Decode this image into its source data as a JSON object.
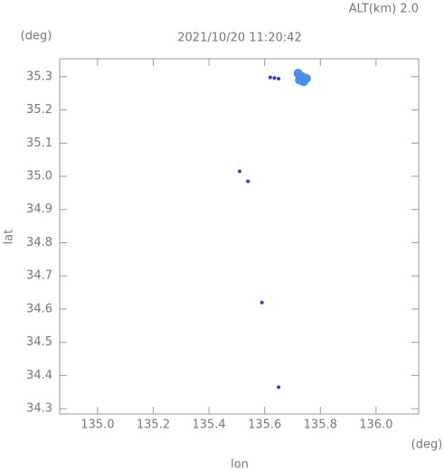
{
  "chart_data": {
    "type": "scatter",
    "annotation": "ALT(km) 2.0",
    "title": "2021/10/20 11:20:42",
    "y_unit": "(deg)",
    "x_unit": "(deg)",
    "ylabel": "lat",
    "xlabel": "lon",
    "xlim": [
      134.864,
      136.153
    ],
    "ylim": [
      34.284,
      35.354
    ],
    "xticks": [
      {
        "value": 135.0,
        "label": "135.0"
      },
      135.2,
      135.4,
      135.6,
      135.8,
      {
        "value": 136.0,
        "label": "136.0"
      }
    ],
    "yticks": [
      34.3,
      34.4,
      34.5,
      34.6,
      34.7,
      34.8,
      34.9,
      {
        "value": 35.0,
        "label": "35.0"
      },
      35.1,
      35.2,
      35.3
    ],
    "series": [
      {
        "color": "#2f3fd6",
        "x": [
          135.62,
          135.635,
          135.65,
          135.51,
          135.54,
          135.59,
          135.65
        ],
        "values": [
          35.298,
          35.296,
          35.294,
          35.015,
          34.985,
          34.62,
          34.365
        ]
      },
      {
        "color": "#4a8ff0",
        "x": [
          135.72,
          135.735,
          135.75,
          135.74,
          135.73,
          135.725
        ],
        "values": [
          35.31,
          35.3,
          35.295,
          35.285,
          35.3,
          35.29
        ]
      }
    ]
  }
}
